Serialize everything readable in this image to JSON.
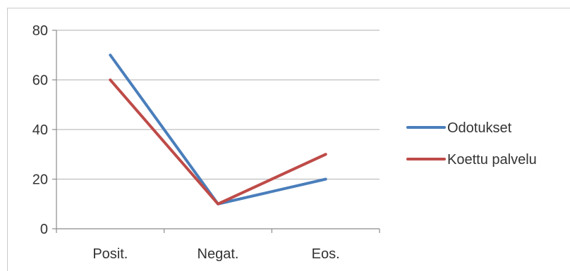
{
  "chart_data": {
    "type": "line",
    "categories": [
      "Posit.",
      "Negat.",
      "Eos."
    ],
    "series": [
      {
        "name": "Odotukset",
        "values": [
          70,
          10,
          20
        ],
        "color": "#4a7ebb"
      },
      {
        "name": "Koettu palvelu",
        "values": [
          60,
          10,
          30
        ],
        "color": "#be4b48"
      }
    ],
    "ylim": [
      0,
      80
    ],
    "yticks": [
      0,
      20,
      40,
      60,
      80
    ],
    "grid": true,
    "legend": "right"
  }
}
